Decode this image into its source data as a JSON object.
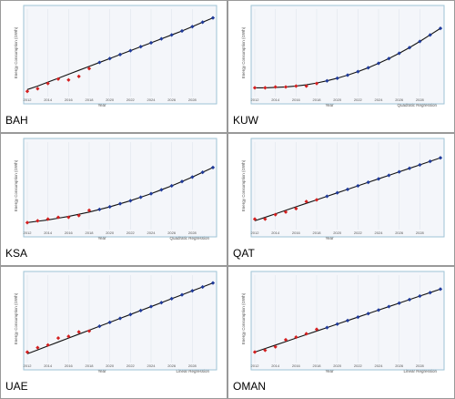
{
  "chart_data": [
    {
      "type": "line",
      "title": "BAH",
      "xlabel": "Year",
      "ylabel": "Energy Consumption (GWh)",
      "grid": true,
      "x": [
        2012,
        2013,
        2014,
        2015,
        2016,
        2017,
        2018,
        2019,
        2020,
        2021,
        2022,
        2023,
        2024,
        2025,
        2026,
        2027,
        2028,
        2029,
        2030
      ],
      "xlim": [
        2012,
        2030
      ],
      "xticks": [
        2012,
        2014,
        2016,
        2018,
        2020,
        2022,
        2024,
        2026,
        2028
      ],
      "ylim": [
        0,
        100
      ],
      "series": [
        {
          "style": "line",
          "color": "#111111",
          "values": [
            8,
            12,
            16.5,
            21,
            25.5,
            30,
            34.5,
            39,
            43.5,
            48,
            52.5,
            57,
            61.5,
            66,
            70.5,
            75,
            80,
            85,
            90
          ]
        },
        {
          "style": "points",
          "color": "#d42020",
          "x": [
            2012,
            2013,
            2014,
            2015,
            2016,
            2017,
            2018
          ],
          "values": [
            6,
            9,
            15,
            20,
            19,
            23,
            32
          ]
        },
        {
          "style": "points",
          "color": "#1f3a9a",
          "x": [
            2019,
            2020,
            2021,
            2022,
            2023,
            2024,
            2025,
            2026,
            2027,
            2028,
            2029,
            2030
          ],
          "values": [
            39,
            43.5,
            48,
            52.5,
            57,
            61.5,
            66,
            70.5,
            75,
            80,
            85,
            90
          ]
        }
      ]
    },
    {
      "type": "line",
      "title": "KUW",
      "xlabel": "Year",
      "ylabel": "Energy Consumption (GWh)",
      "method": "Quadratic Regression",
      "grid": true,
      "x": [
        2012,
        2013,
        2014,
        2015,
        2016,
        2017,
        2018,
        2019,
        2020,
        2021,
        2022,
        2023,
        2024,
        2025,
        2026,
        2027,
        2028,
        2029,
        2030
      ],
      "xlim": [
        2012,
        2030
      ],
      "xticks": [
        2012,
        2014,
        2016,
        2018,
        2020,
        2022,
        2024,
        2026,
        2028
      ],
      "ylim": [
        0,
        100
      ],
      "series": [
        {
          "style": "line",
          "color": "#111111",
          "values": [
            10,
            10,
            10.5,
            11,
            12,
            13.5,
            15.5,
            18,
            21,
            24.5,
            28.5,
            33,
            38,
            43.5,
            49.5,
            56,
            63,
            70.5,
            78
          ]
        },
        {
          "style": "points",
          "color": "#d42020",
          "x": [
            2012,
            2013,
            2014,
            2015,
            2016,
            2017,
            2018
          ],
          "values": [
            10,
            10,
            11,
            11,
            12,
            12,
            15
          ]
        },
        {
          "style": "points",
          "color": "#1f3a9a",
          "x": [
            2019,
            2020,
            2021,
            2022,
            2023,
            2024,
            2025,
            2026,
            2027,
            2028,
            2029,
            2030
          ],
          "values": [
            18,
            21,
            24.5,
            28.5,
            33,
            38,
            43.5,
            49.5,
            56,
            63,
            70.5,
            78
          ]
        }
      ]
    },
    {
      "type": "line",
      "title": "KSA",
      "xlabel": "Year",
      "ylabel": "Energy Consumption (GWh)",
      "method": "Quadratic Regression",
      "grid": true,
      "x": [
        2012,
        2013,
        2014,
        2015,
        2016,
        2017,
        2018,
        2019,
        2020,
        2021,
        2022,
        2023,
        2024,
        2025,
        2026,
        2027,
        2028,
        2029,
        2030
      ],
      "xlim": [
        2012,
        2030
      ],
      "xticks": [
        2012,
        2014,
        2016,
        2018,
        2020,
        2022,
        2024,
        2026,
        2028
      ],
      "ylim": [
        0,
        100
      ],
      "series": [
        {
          "style": "line",
          "color": "#111111",
          "values": [
            8,
            9.5,
            11,
            13,
            15,
            17.5,
            20,
            23,
            26,
            29.5,
            33,
            37,
            41,
            45.5,
            50,
            55,
            60,
            65.5,
            71
          ]
        },
        {
          "style": "points",
          "color": "#d42020",
          "x": [
            2012,
            2013,
            2014,
            2015,
            2016,
            2017,
            2018
          ],
          "values": [
            8,
            10,
            12,
            14,
            14,
            16,
            22
          ]
        },
        {
          "style": "points",
          "color": "#1f3a9a",
          "x": [
            2019,
            2020,
            2021,
            2022,
            2023,
            2024,
            2025,
            2026,
            2027,
            2028,
            2029,
            2030
          ],
          "values": [
            23,
            26,
            29.5,
            33,
            37,
            41,
            45.5,
            50,
            55,
            60,
            65.5,
            71
          ]
        }
      ]
    },
    {
      "type": "line",
      "title": "QAT",
      "xlabel": "Year",
      "ylabel": "Energy Consumption (GWh)",
      "grid": true,
      "x": [
        2012,
        2013,
        2014,
        2015,
        2016,
        2017,
        2018,
        2019,
        2020,
        2021,
        2022,
        2023,
        2024,
        2025,
        2026,
        2027,
        2028,
        2029,
        2030
      ],
      "xlim": [
        2012,
        2030
      ],
      "xticks": [
        2012,
        2014,
        2016,
        2018,
        2020,
        2022,
        2024,
        2026,
        2028
      ],
      "ylim": [
        0,
        100
      ],
      "series": [
        {
          "style": "line",
          "color": "#111111",
          "values": [
            10,
            14,
            18,
            22,
            26,
            30,
            34,
            38,
            42,
            46,
            50,
            54,
            58,
            62,
            66,
            70,
            74,
            78,
            82
          ]
        },
        {
          "style": "points",
          "color": "#d42020",
          "x": [
            2012,
            2013,
            2014,
            2015,
            2016,
            2017,
            2018
          ],
          "values": [
            12,
            12,
            17,
            20,
            24,
            32,
            34
          ]
        },
        {
          "style": "points",
          "color": "#1f3a9a",
          "x": [
            2019,
            2020,
            2021,
            2022,
            2023,
            2024,
            2025,
            2026,
            2027,
            2028,
            2029,
            2030
          ],
          "values": [
            38,
            42,
            46,
            50,
            54,
            58,
            62,
            66,
            70,
            74,
            78,
            82
          ]
        }
      ]
    },
    {
      "type": "line",
      "title": "UAE",
      "xlabel": "Year",
      "ylabel": "Energy Consumption (GWh)",
      "method": "Linear Regression",
      "grid": true,
      "x": [
        2012,
        2013,
        2014,
        2015,
        2016,
        2017,
        2018,
        2019,
        2020,
        2021,
        2022,
        2023,
        2024,
        2025,
        2026,
        2027,
        2028,
        2029,
        2030
      ],
      "xlim": [
        2012,
        2030
      ],
      "xticks": [
        2012,
        2014,
        2016,
        2018,
        2020,
        2022,
        2024,
        2026,
        2028
      ],
      "ylim": [
        0,
        100
      ],
      "series": [
        {
          "style": "line",
          "color": "#111111",
          "values": [
            10,
            14.5,
            19,
            23.5,
            28,
            32.5,
            37,
            41.5,
            46,
            50.5,
            55,
            59.5,
            64,
            68.5,
            73,
            77.5,
            82,
            86.5,
            91
          ]
        },
        {
          "style": "points",
          "color": "#d42020",
          "x": [
            2012,
            2013,
            2014,
            2015,
            2016,
            2017,
            2018
          ],
          "values": [
            12,
            17,
            20,
            28,
            30,
            35,
            36
          ]
        },
        {
          "style": "points",
          "color": "#1f3a9a",
          "x": [
            2019,
            2020,
            2021,
            2022,
            2023,
            2024,
            2025,
            2026,
            2027,
            2028,
            2029,
            2030
          ],
          "values": [
            41.5,
            46,
            50.5,
            55,
            59.5,
            64,
            68.5,
            73,
            77.5,
            82,
            86.5,
            91
          ]
        }
      ]
    },
    {
      "type": "line",
      "title": "OMAN",
      "xlabel": "Year",
      "ylabel": "Energy Consumption (GWh)",
      "method": "Linear Regression",
      "grid": true,
      "x": [
        2012,
        2013,
        2014,
        2015,
        2016,
        2017,
        2018,
        2019,
        2020,
        2021,
        2022,
        2023,
        2024,
        2025,
        2026,
        2027,
        2028,
        2029,
        2030
      ],
      "xlim": [
        2012,
        2030
      ],
      "xticks": [
        2012,
        2014,
        2016,
        2018,
        2020,
        2022,
        2024,
        2026,
        2028
      ],
      "ylim": [
        0,
        100
      ],
      "series": [
        {
          "style": "line",
          "color": "#111111",
          "values": [
            12,
            16,
            20,
            24,
            28,
            32,
            36,
            40,
            44,
            48,
            52,
            56,
            60,
            64,
            68,
            72,
            76,
            80,
            84
          ]
        },
        {
          "style": "points",
          "color": "#d42020",
          "x": [
            2012,
            2013,
            2014,
            2015,
            2016,
            2017,
            2018
          ],
          "values": [
            12,
            14,
            18,
            26,
            29,
            33,
            38
          ]
        },
        {
          "style": "points",
          "color": "#1f3a9a",
          "x": [
            2019,
            2020,
            2021,
            2022,
            2023,
            2024,
            2025,
            2026,
            2027,
            2028,
            2029,
            2030
          ],
          "values": [
            40,
            44,
            48,
            52,
            56,
            60,
            64,
            68,
            72,
            76,
            80,
            84
          ]
        }
      ]
    }
  ]
}
